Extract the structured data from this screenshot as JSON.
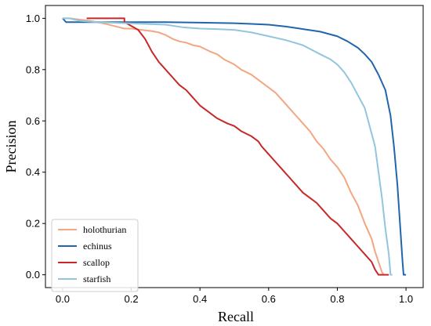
{
  "chart_data": {
    "type": "line",
    "title": "",
    "xlabel": "Recall",
    "ylabel": "Precision",
    "xlim": [
      -0.05,
      1.05
    ],
    "ylim": [
      -0.05,
      1.05
    ],
    "xticks": [
      0.0,
      0.2,
      0.4,
      0.6,
      0.8,
      1.0
    ],
    "yticks": [
      0.0,
      0.2,
      0.4,
      0.6,
      0.8,
      1.0
    ],
    "xtick_labels": [
      "0.0",
      "0.2",
      "0.4",
      "0.6",
      "0.8",
      "1.0"
    ],
    "ytick_labels": [
      "0.0",
      "0.2",
      "0.4",
      "0.6",
      "0.8",
      "1.0"
    ],
    "grid": false,
    "legend_position": "lower-left",
    "series": [
      {
        "name": "holothurian",
        "color": "#f4a582",
        "points": [
          [
            0.0,
            1.0
          ],
          [
            0.02,
            1.0
          ],
          [
            0.05,
            0.995
          ],
          [
            0.08,
            0.99
          ],
          [
            0.1,
            0.985
          ],
          [
            0.12,
            0.98
          ],
          [
            0.15,
            0.97
          ],
          [
            0.18,
            0.96
          ],
          [
            0.2,
            0.96
          ],
          [
            0.23,
            0.955
          ],
          [
            0.26,
            0.95
          ],
          [
            0.28,
            0.945
          ],
          [
            0.3,
            0.935
          ],
          [
            0.32,
            0.92
          ],
          [
            0.34,
            0.91
          ],
          [
            0.36,
            0.905
          ],
          [
            0.38,
            0.895
          ],
          [
            0.4,
            0.89
          ],
          [
            0.43,
            0.87
          ],
          [
            0.45,
            0.86
          ],
          [
            0.47,
            0.84
          ],
          [
            0.5,
            0.82
          ],
          [
            0.52,
            0.8
          ],
          [
            0.55,
            0.78
          ],
          [
            0.57,
            0.76
          ],
          [
            0.6,
            0.73
          ],
          [
            0.62,
            0.71
          ],
          [
            0.64,
            0.68
          ],
          [
            0.66,
            0.65
          ],
          [
            0.68,
            0.62
          ],
          [
            0.7,
            0.59
          ],
          [
            0.72,
            0.56
          ],
          [
            0.74,
            0.52
          ],
          [
            0.76,
            0.49
          ],
          [
            0.78,
            0.45
          ],
          [
            0.8,
            0.42
          ],
          [
            0.82,
            0.38
          ],
          [
            0.84,
            0.32
          ],
          [
            0.86,
            0.27
          ],
          [
            0.88,
            0.2
          ],
          [
            0.9,
            0.14
          ],
          [
            0.91,
            0.09
          ],
          [
            0.92,
            0.05
          ],
          [
            0.93,
            0.01
          ],
          [
            0.935,
            0.0
          ]
        ]
      },
      {
        "name": "echinus",
        "color": "#2166ac",
        "points": [
          [
            0.0,
            1.0
          ],
          [
            0.01,
            0.985
          ],
          [
            0.05,
            0.985
          ],
          [
            0.1,
            0.985
          ],
          [
            0.2,
            0.985
          ],
          [
            0.3,
            0.985
          ],
          [
            0.4,
            0.983
          ],
          [
            0.5,
            0.981
          ],
          [
            0.55,
            0.978
          ],
          [
            0.6,
            0.975
          ],
          [
            0.65,
            0.968
          ],
          [
            0.7,
            0.958
          ],
          [
            0.75,
            0.948
          ],
          [
            0.8,
            0.93
          ],
          [
            0.83,
            0.91
          ],
          [
            0.86,
            0.885
          ],
          [
            0.88,
            0.86
          ],
          [
            0.9,
            0.83
          ],
          [
            0.92,
            0.78
          ],
          [
            0.94,
            0.72
          ],
          [
            0.955,
            0.62
          ],
          [
            0.965,
            0.5
          ],
          [
            0.975,
            0.35
          ],
          [
            0.985,
            0.15
          ],
          [
            0.99,
            0.05
          ],
          [
            0.993,
            0.0
          ],
          [
            1.0,
            0.0
          ]
        ]
      },
      {
        "name": "scallop",
        "color": "#c62828",
        "points": [
          [
            0.07,
            1.0
          ],
          [
            0.18,
            1.0
          ],
          [
            0.18,
            0.985
          ],
          [
            0.2,
            0.97
          ],
          [
            0.22,
            0.955
          ],
          [
            0.24,
            0.92
          ],
          [
            0.26,
            0.87
          ],
          [
            0.28,
            0.83
          ],
          [
            0.3,
            0.8
          ],
          [
            0.32,
            0.77
          ],
          [
            0.34,
            0.74
          ],
          [
            0.36,
            0.72
          ],
          [
            0.38,
            0.69
          ],
          [
            0.4,
            0.66
          ],
          [
            0.42,
            0.64
          ],
          [
            0.45,
            0.61
          ],
          [
            0.48,
            0.59
          ],
          [
            0.5,
            0.58
          ],
          [
            0.52,
            0.56
          ],
          [
            0.55,
            0.54
          ],
          [
            0.57,
            0.52
          ],
          [
            0.58,
            0.5
          ],
          [
            0.6,
            0.47
          ],
          [
            0.62,
            0.44
          ],
          [
            0.64,
            0.41
          ],
          [
            0.66,
            0.38
          ],
          [
            0.68,
            0.35
          ],
          [
            0.7,
            0.32
          ],
          [
            0.72,
            0.3
          ],
          [
            0.74,
            0.28
          ],
          [
            0.76,
            0.25
          ],
          [
            0.78,
            0.22
          ],
          [
            0.8,
            0.2
          ],
          [
            0.82,
            0.17
          ],
          [
            0.84,
            0.14
          ],
          [
            0.86,
            0.11
          ],
          [
            0.88,
            0.08
          ],
          [
            0.9,
            0.05
          ],
          [
            0.91,
            0.02
          ],
          [
            0.92,
            0.0
          ],
          [
            0.95,
            0.0
          ]
        ]
      },
      {
        "name": "starfish",
        "color": "#92c5de",
        "points": [
          [
            0.0,
            1.0
          ],
          [
            0.02,
            1.0
          ],
          [
            0.05,
            0.99
          ],
          [
            0.1,
            0.985
          ],
          [
            0.2,
            0.98
          ],
          [
            0.3,
            0.975
          ],
          [
            0.35,
            0.965
          ],
          [
            0.4,
            0.96
          ],
          [
            0.45,
            0.958
          ],
          [
            0.5,
            0.955
          ],
          [
            0.55,
            0.945
          ],
          [
            0.6,
            0.93
          ],
          [
            0.65,
            0.915
          ],
          [
            0.7,
            0.895
          ],
          [
            0.75,
            0.86
          ],
          [
            0.78,
            0.84
          ],
          [
            0.8,
            0.82
          ],
          [
            0.82,
            0.79
          ],
          [
            0.84,
            0.75
          ],
          [
            0.86,
            0.7
          ],
          [
            0.88,
            0.65
          ],
          [
            0.89,
            0.6
          ],
          [
            0.9,
            0.55
          ],
          [
            0.91,
            0.5
          ],
          [
            0.92,
            0.4
          ],
          [
            0.93,
            0.3
          ],
          [
            0.94,
            0.18
          ],
          [
            0.95,
            0.08
          ],
          [
            0.955,
            0.0
          ],
          [
            0.96,
            0.0
          ]
        ]
      }
    ]
  }
}
